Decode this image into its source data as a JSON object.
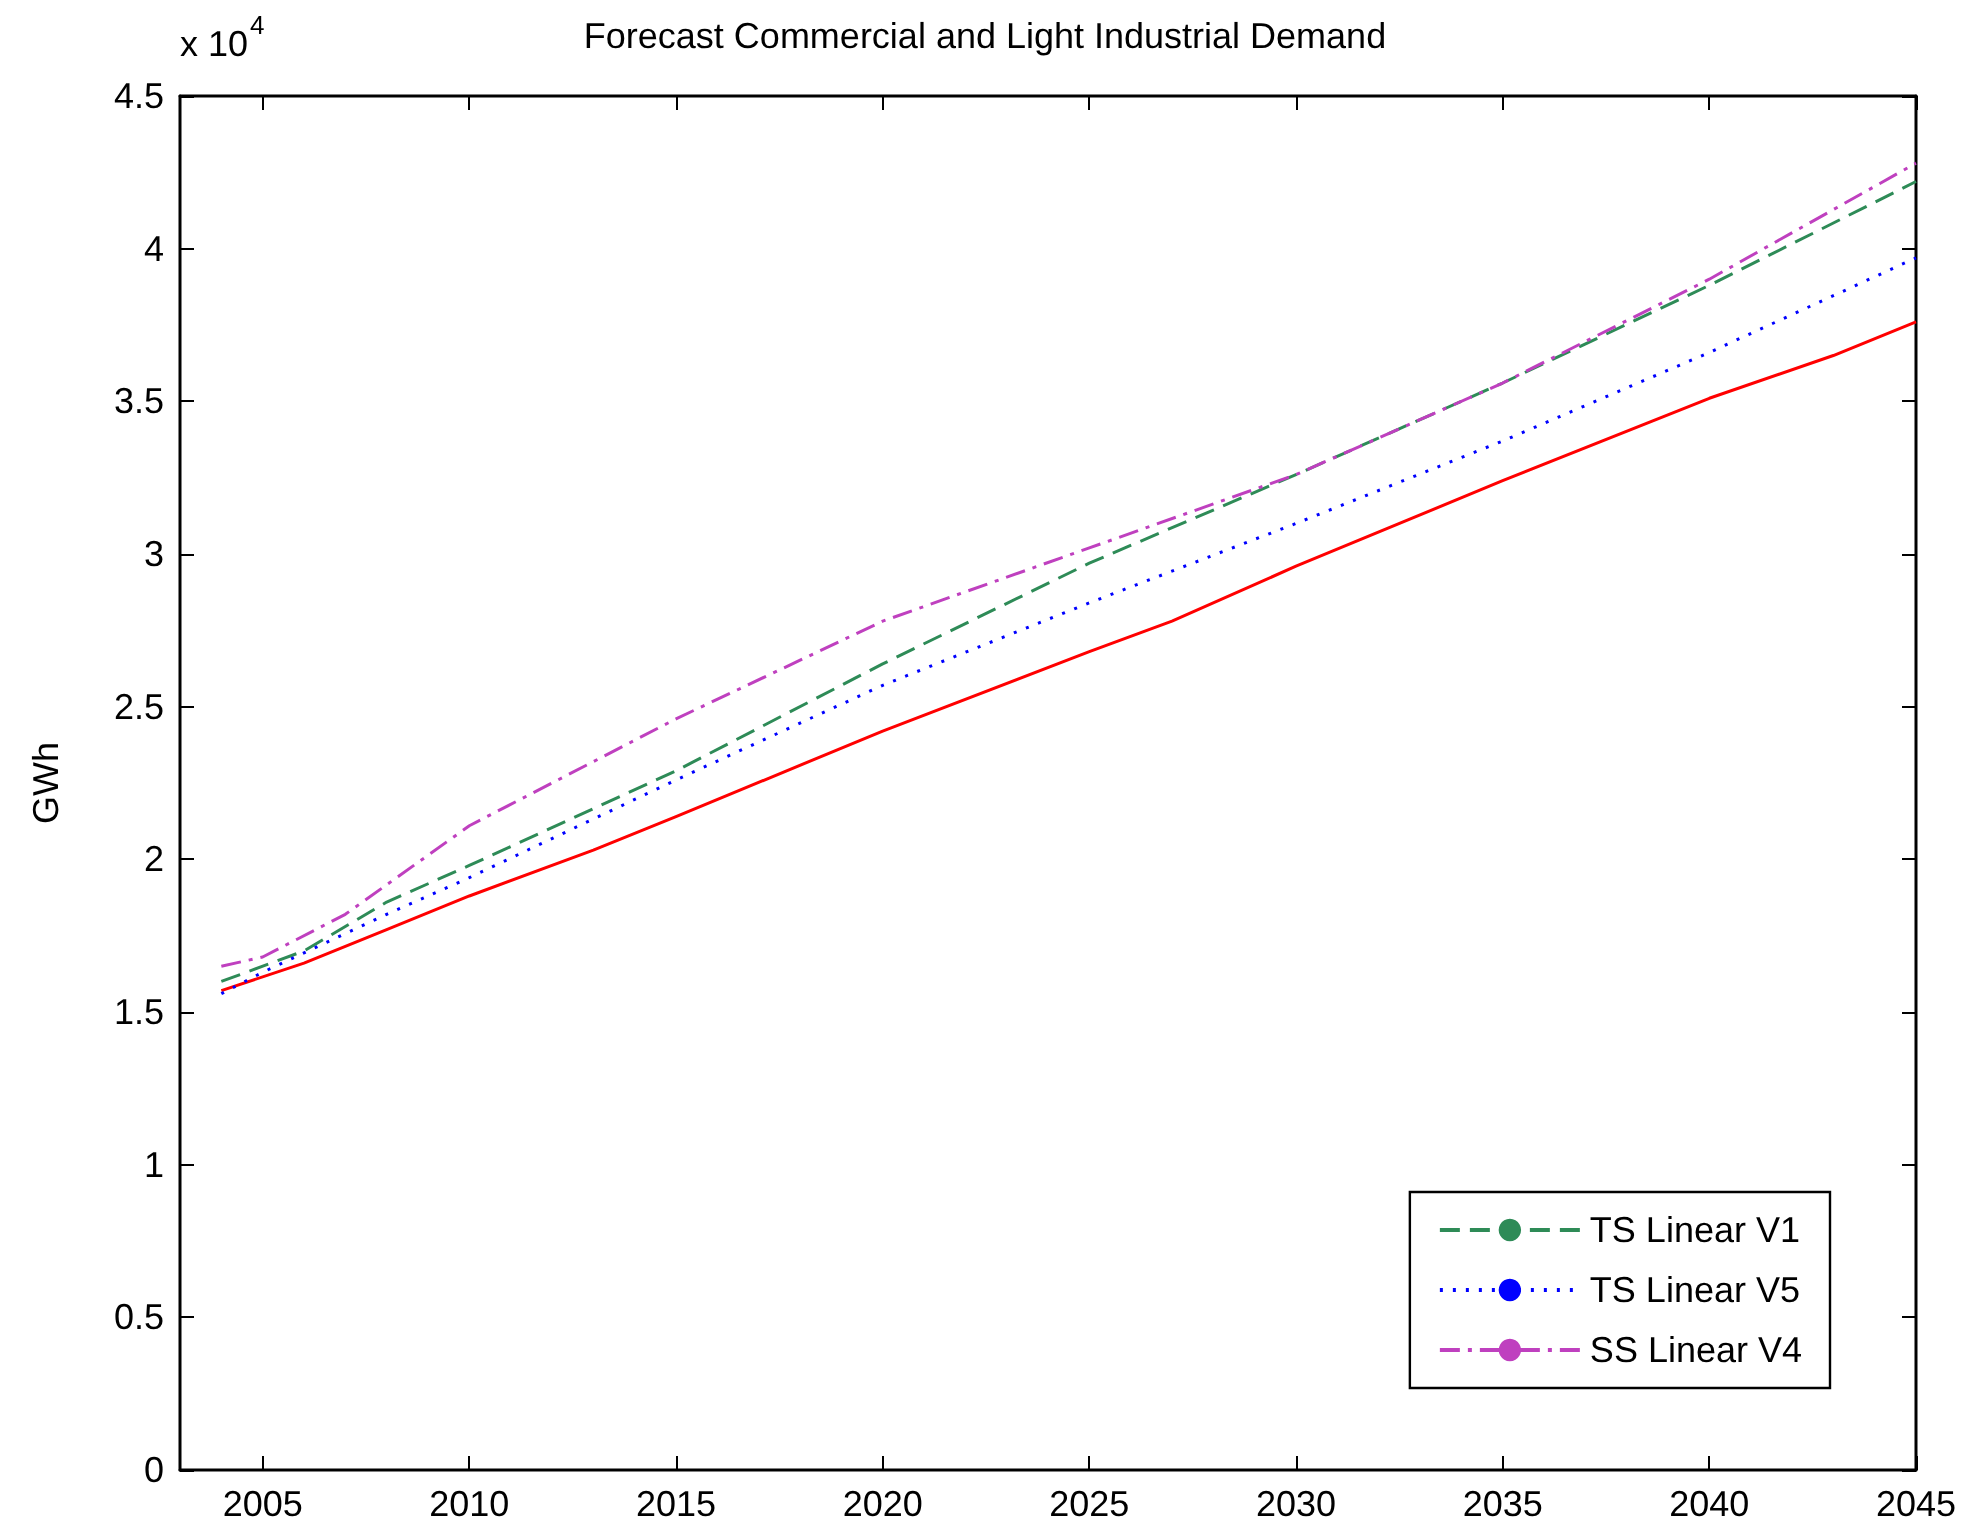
{
  "chart_data": {
    "type": "line",
    "title": "Forecast Commercial and Light Industrial Demand",
    "ylabel": "GWh",
    "annotations": [
      "x 10$^{4}$"
    ],
    "xlim": [
      2003,
      2045
    ],
    "xticks": [
      2005,
      2010,
      2015,
      2020,
      2025,
      2030,
      2035,
      2040,
      2045
    ],
    "ylim": [
      0,
      4.5
    ],
    "yticks": [
      0,
      0.5,
      1,
      1.5,
      2,
      2.5,
      3,
      3.5,
      4,
      4.5
    ],
    "grid": false,
    "legend": "bottom right",
    "marker": "none",
    "series": [
      {
        "color": "#ff0000",
        "line_style": "solid",
        "x": [
          2004,
          2006,
          2008,
          2010,
          2013,
          2015,
          2020,
          2025,
          2027,
          2030,
          2035,
          2040,
          2043,
          2045
        ],
        "values": [
          1.57,
          1.66,
          1.77,
          1.88,
          2.03,
          2.14,
          2.42,
          2.68,
          2.78,
          2.96,
          3.24,
          3.51,
          3.65,
          3.76
        ]
      },
      {
        "name": "TS Linear V1",
        "color": "#2e8b57",
        "line_style": "dashed",
        "x": [
          2004,
          2006,
          2008,
          2010,
          2015,
          2020,
          2025,
          2030,
          2035,
          2040,
          2045
        ],
        "values": [
          1.6,
          1.7,
          1.86,
          1.98,
          2.29,
          2.64,
          2.97,
          3.26,
          3.56,
          3.88,
          4.22
        ]
      },
      {
        "name": "TS Linear V5",
        "color": "#0000ff",
        "line_style": "dotted",
        "x": [
          2004,
          2005,
          2008,
          2010,
          2015,
          2020,
          2025,
          2030,
          2035,
          2040,
          2045
        ],
        "values": [
          1.56,
          1.63,
          1.82,
          1.94,
          2.26,
          2.57,
          2.84,
          3.1,
          3.37,
          3.66,
          3.97
        ]
      },
      {
        "name": "SS Linear V4",
        "color": "#bf40bf",
        "line_style": "dashdot",
        "x": [
          2004,
          2005,
          2007,
          2010,
          2015,
          2020,
          2025,
          2030,
          2035,
          2040,
          2045
        ],
        "values": [
          1.65,
          1.68,
          1.82,
          2.11,
          2.46,
          2.78,
          3.02,
          3.26,
          3.56,
          3.9,
          4.28
        ]
      }
    ]
  }
}
